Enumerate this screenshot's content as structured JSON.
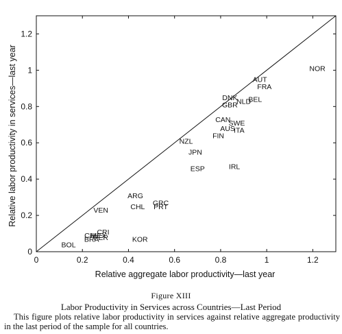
{
  "chart_data": {
    "type": "scatter",
    "xlabel": "Relative aggregate labor productivity—last year",
    "ylabel": "Relative labor productivity in services—last year",
    "xlim": [
      0,
      1.3
    ],
    "ylim": [
      0,
      1.3
    ],
    "xticks": [
      "0",
      "0.2",
      "0.4",
      "0.6",
      "0.8",
      "1",
      "1.2"
    ],
    "yticks": [
      "0",
      "0.2",
      "0.4",
      "0.6",
      "0.8",
      "1",
      "1.2"
    ],
    "xtick_values": [
      0,
      0.2,
      0.4,
      0.6,
      0.8,
      1.0,
      1.2
    ],
    "ytick_values": [
      0,
      0.2,
      0.4,
      0.6,
      0.8,
      1.0,
      1.2
    ],
    "reference_line": "45-degree line",
    "grid": false,
    "markers": "country labels",
    "points": [
      {
        "label": "NOR",
        "x": 1.22,
        "y": 1.01
      },
      {
        "label": "AUT",
        "x": 0.97,
        "y": 0.95
      },
      {
        "label": "FRA",
        "x": 0.99,
        "y": 0.91
      },
      {
        "label": "BEL",
        "x": 0.95,
        "y": 0.84
      },
      {
        "label": "DNK",
        "x": 0.84,
        "y": 0.85
      },
      {
        "label": "NLD",
        "x": 0.9,
        "y": 0.83
      },
      {
        "label": "GBR",
        "x": 0.84,
        "y": 0.81
      },
      {
        "label": "CAN",
        "x": 0.81,
        "y": 0.73
      },
      {
        "label": "SWE",
        "x": 0.87,
        "y": 0.71
      },
      {
        "label": "AUS",
        "x": 0.83,
        "y": 0.68
      },
      {
        "label": "ITA",
        "x": 0.88,
        "y": 0.67
      },
      {
        "label": "FIN",
        "x": 0.79,
        "y": 0.64
      },
      {
        "label": "NZL",
        "x": 0.65,
        "y": 0.61
      },
      {
        "label": "JPN",
        "x": 0.69,
        "y": 0.55
      },
      {
        "label": "ESP",
        "x": 0.7,
        "y": 0.46
      },
      {
        "label": "IRL",
        "x": 0.86,
        "y": 0.47
      },
      {
        "label": "ARG",
        "x": 0.43,
        "y": 0.31
      },
      {
        "label": "GRC",
        "x": 0.54,
        "y": 0.27
      },
      {
        "label": "PRT",
        "x": 0.54,
        "y": 0.25
      },
      {
        "label": "CHL",
        "x": 0.44,
        "y": 0.25
      },
      {
        "label": "VEN",
        "x": 0.28,
        "y": 0.23
      },
      {
        "label": "CRI",
        "x": 0.29,
        "y": 0.11
      },
      {
        "label": "CHL",
        "x": 0.24,
        "y": 0.09
      },
      {
        "label": "MEX",
        "x": 0.27,
        "y": 0.09
      },
      {
        "label": "PER",
        "x": 0.28,
        "y": 0.08
      },
      {
        "label": "BRA",
        "x": 0.24,
        "y": 0.07
      },
      {
        "label": "BOL",
        "x": 0.14,
        "y": 0.04
      },
      {
        "label": "KOR",
        "x": 0.45,
        "y": 0.07
      }
    ]
  },
  "caption": {
    "figure_number": "Figure XIII",
    "title": "Labor Productivity in Services across Countries—Last Period",
    "body": "This figure plots relative labor productivity in services against relative aggregate productivity in the last period of the sample for all countries."
  }
}
